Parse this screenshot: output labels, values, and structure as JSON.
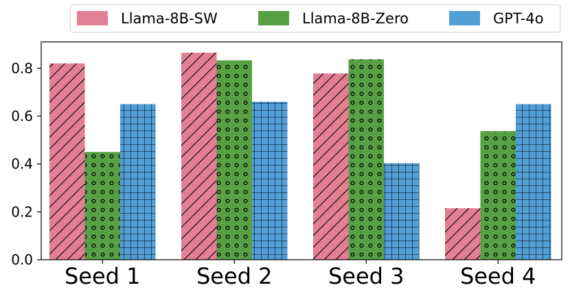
{
  "chart_data": {
    "type": "bar",
    "categories": [
      "Seed 1",
      "Seed 2",
      "Seed 3",
      "Seed 4"
    ],
    "series": [
      {
        "name": "Llama-8B-SW",
        "values": [
          0.82,
          0.865,
          0.778,
          0.215
        ],
        "color": "#e27f94",
        "hatch": "diagonal"
      },
      {
        "name": "Llama-8B-Zero",
        "values": [
          0.45,
          0.833,
          0.837,
          0.537
        ],
        "color": "#57a043",
        "hatch": "dots"
      },
      {
        "name": "GPT-4o",
        "values": [
          0.65,
          0.66,
          0.403,
          0.65
        ],
        "color": "#529fd7",
        "hatch": "grid"
      }
    ],
    "title": "",
    "xlabel": "",
    "ylabel": "",
    "ylim": [
      0,
      0.91
    ],
    "yticks": [
      0.0,
      0.2,
      0.4,
      0.6,
      0.8
    ],
    "ytick_labels": [
      "0.0",
      "0.2",
      "0.4",
      "0.6",
      "0.8"
    ],
    "grid": false,
    "legend_position": "top-center"
  }
}
